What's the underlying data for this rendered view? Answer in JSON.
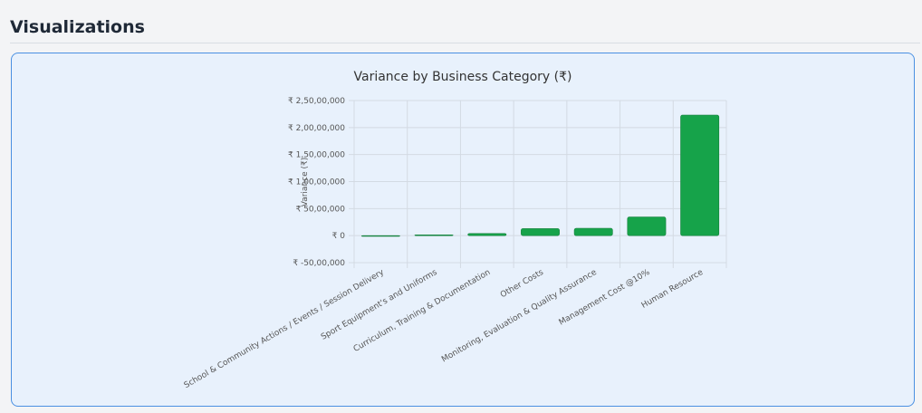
{
  "section": {
    "title": "Visualizations"
  },
  "chart_data": {
    "type": "bar",
    "title": "Variance by Business Category (₹)",
    "xlabel": "",
    "ylabel": "Variance (₹)",
    "ylim": [
      -5000000,
      25000000
    ],
    "yticks": [
      25000000,
      20000000,
      15000000,
      10000000,
      5000000,
      0,
      -5000000
    ],
    "ytick_labels": [
      "₹ 2,50,00,000",
      "₹ 2,00,00,000",
      "₹ 1,50,00,000",
      "₹ 1,00,00,000",
      "₹ 50,00,000",
      "₹ 0",
      "₹ -50,00,000"
    ],
    "categories": [
      "School & Community Actions / Events / Session Delivery",
      "Sport Equipment's and Uniforms",
      "Curriculum, Training & Documentation",
      "Other Costs",
      "Monitoring, Evaluation & Quality Assurance",
      "Management Cost @10%",
      "Human Resource"
    ],
    "values": [
      0,
      150000,
      400000,
      1300000,
      1350000,
      3450000,
      22300000
    ],
    "bar_color": "#16a34a",
    "grid": true,
    "legend": "none"
  }
}
